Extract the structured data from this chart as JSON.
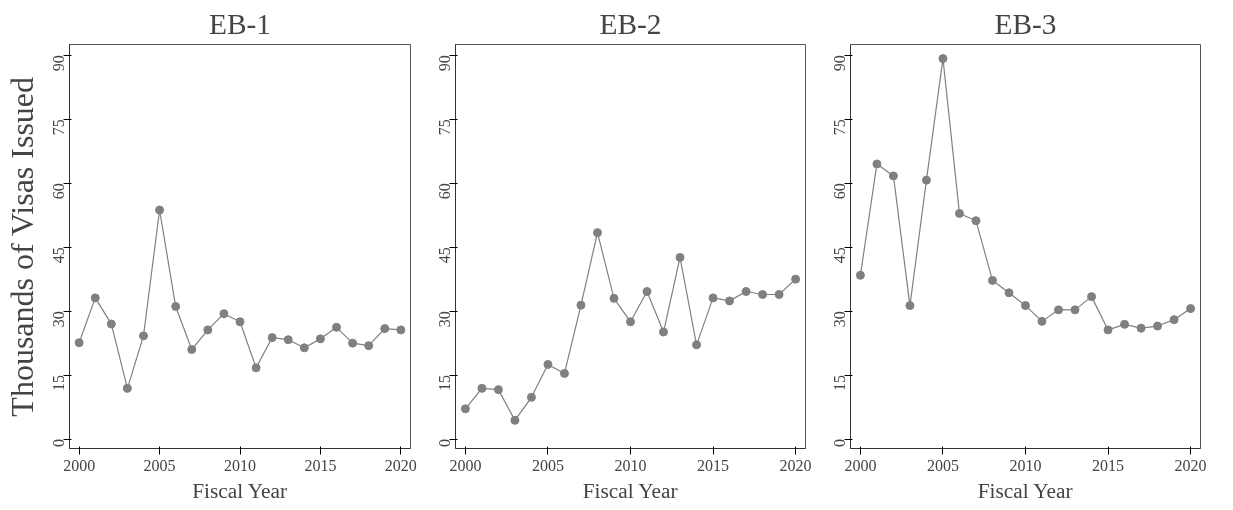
{
  "chart_data": [
    {
      "type": "line",
      "title": "EB-1",
      "xlabel": "Fiscal Year",
      "ylabel": "Thousands of Visas Issued",
      "x": [
        2000,
        2001,
        2002,
        2003,
        2004,
        2005,
        2006,
        2007,
        2008,
        2009,
        2010,
        2011,
        2012,
        2013,
        2014,
        2015,
        2016,
        2017,
        2018,
        2019,
        2020
      ],
      "series": [
        {
          "color": "#808080",
          "values": [
            22.6,
            33.1,
            27.0,
            11.9,
            24.2,
            53.7,
            31.1,
            21.0,
            25.6,
            29.4,
            27.5,
            16.7,
            23.8,
            23.3,
            21.4,
            23.5,
            26.2,
            22.5,
            21.9,
            25.9,
            25.6
          ]
        }
      ],
      "xlim": [
        1999.4,
        2020.6
      ],
      "xticks": [
        2000,
        2005,
        2010,
        2015,
        2020
      ],
      "ylim": [
        -2.2,
        92.5
      ],
      "yticks": [
        0,
        15,
        30,
        45,
        60,
        75,
        90
      ],
      "grid": false,
      "marker": "circle",
      "line_style": "solid"
    },
    {
      "type": "line",
      "title": "EB-2",
      "xlabel": "Fiscal Year",
      "x": [
        2000,
        2001,
        2002,
        2003,
        2004,
        2005,
        2006,
        2007,
        2008,
        2009,
        2010,
        2011,
        2012,
        2013,
        2014,
        2015,
        2016,
        2017,
        2018,
        2019,
        2020
      ],
      "series": [
        {
          "color": "#808080",
          "values": [
            7.1,
            11.9,
            11.6,
            4.4,
            9.8,
            17.5,
            15.4,
            31.4,
            48.4,
            33.0,
            27.5,
            34.6,
            25.1,
            42.6,
            22.1,
            33.1,
            32.4,
            34.6,
            33.9,
            33.9,
            37.5
          ]
        }
      ],
      "xlim": [
        1999.4,
        2020.6
      ],
      "xticks": [
        2000,
        2005,
        2010,
        2015,
        2020
      ],
      "ylim": [
        -2.2,
        92.5
      ],
      "yticks": [
        0,
        15,
        30,
        45,
        60,
        75,
        90
      ],
      "grid": false,
      "marker": "circle",
      "line_style": "solid"
    },
    {
      "type": "line",
      "title": "EB-3",
      "xlabel": "Fiscal Year",
      "x": [
        2000,
        2001,
        2002,
        2003,
        2004,
        2005,
        2006,
        2007,
        2008,
        2009,
        2010,
        2011,
        2012,
        2013,
        2014,
        2015,
        2016,
        2017,
        2018,
        2019,
        2020
      ],
      "series": [
        {
          "color": "#808080",
          "values": [
            38.4,
            64.5,
            61.7,
            31.3,
            60.7,
            89.2,
            52.9,
            51.2,
            37.2,
            34.3,
            31.3,
            27.6,
            30.3,
            30.3,
            33.4,
            25.6,
            26.9,
            26.0,
            26.5,
            28.0,
            30.6
          ]
        }
      ],
      "xlim": [
        1999.4,
        2020.6
      ],
      "xticks": [
        2000,
        2005,
        2010,
        2015,
        2020
      ],
      "ylim": [
        -2.2,
        92.5
      ],
      "yticks": [
        0,
        15,
        30,
        45,
        60,
        75,
        90
      ],
      "grid": false,
      "marker": "circle",
      "line_style": "solid"
    }
  ]
}
